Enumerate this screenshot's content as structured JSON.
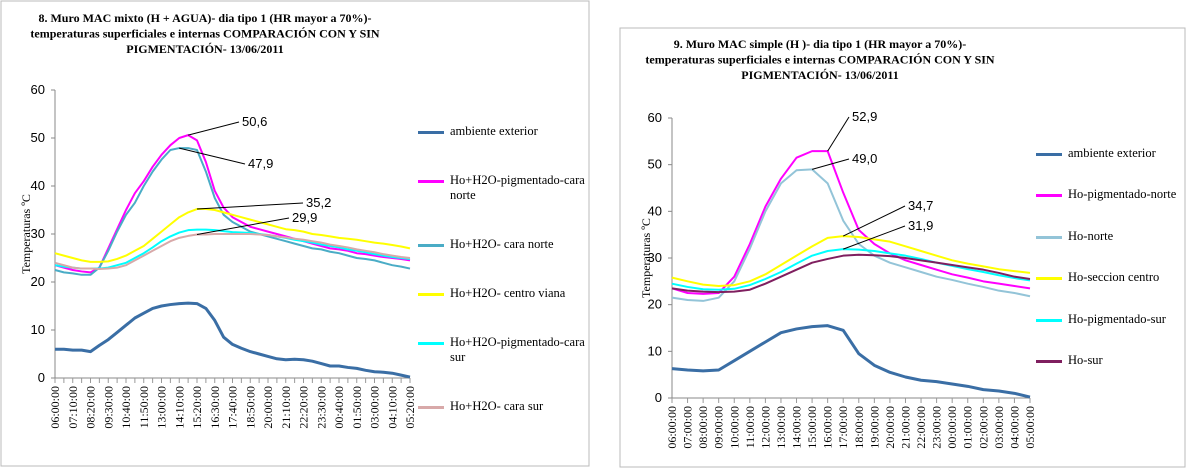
{
  "chart_data": [
    {
      "type": "line",
      "title": [
        "8. Muro MAC mixto  (H + AGUA)-   dia tipo 1 (HR mayor a 70%)-",
        "temperaturas superficiales e internas COMPARACIÓN  CON Y SIN",
        "PIGMENTACIÓN-  13/06/2011"
      ],
      "y_label": "Temperaturas ºC",
      "categories": [
        "06:00:00",
        null,
        "07:10:00",
        null,
        "08:20:00",
        null,
        "09:30:00",
        null,
        "10:40:00",
        null,
        "11:50:00",
        null,
        "13:00:00",
        null,
        "14:10:00",
        null,
        "15:20:00",
        null,
        "16:30:00",
        null,
        "17:40:00",
        null,
        "18:50:00",
        null,
        "20:00:00",
        null,
        "21:10:00",
        null,
        "22:20:00",
        null,
        "23:30:00",
        null,
        "00:40:00",
        null,
        "01:50:00",
        null,
        "03:00:00",
        null,
        "04:10:00",
        null,
        "05:20:00"
      ],
      "ylim": [
        0,
        60
      ],
      "yticks": [
        0,
        10,
        20,
        30,
        40,
        50,
        60
      ],
      "grid": false,
      "legend": "right",
      "series": [
        {
          "name": "ambiente exterior",
          "color": "#3a6ea5",
          "values": [
            6,
            6,
            5.8,
            5.8,
            5.5,
            6.8,
            8,
            9.5,
            11,
            12.5,
            13.5,
            14.5,
            15,
            15.3,
            15.5,
            15.6,
            15.5,
            14.5,
            12,
            8.5,
            7,
            6.2,
            5.5,
            5,
            4.5,
            4,
            3.8,
            3.9,
            3.8,
            3.5,
            3,
            2.5,
            2.5,
            2.2,
            2,
            1.6,
            1.3,
            1.2,
            1,
            0.6,
            0.2
          ]
        },
        {
          "name": "Ho+H2O-pigmentado-cara norte",
          "color": "#ff00ff",
          "values": [
            23.5,
            23,
            22.5,
            22.2,
            22,
            23,
            27,
            31,
            35,
            38.5,
            41,
            44,
            46.5,
            48.5,
            50,
            50.6,
            49.5,
            45,
            39,
            35.5,
            33.5,
            32.5,
            31.5,
            31,
            30.5,
            30,
            29.5,
            29,
            28.5,
            28,
            27.5,
            27,
            26.8,
            26.5,
            26,
            25.8,
            25.5,
            25.2,
            25,
            24.8,
            24.5
          ]
        },
        {
          "name": "Ho+H2O- cara norte",
          "color": "#4aacc6",
          "values": [
            22.5,
            22,
            21.8,
            21.5,
            21.5,
            23,
            26.5,
            30.5,
            34,
            36.5,
            40,
            43,
            45.5,
            47.5,
            47.9,
            47.9,
            47.5,
            43,
            37.5,
            34,
            32.5,
            31.5,
            30.5,
            30,
            29.5,
            29,
            28.5,
            28,
            27.5,
            27,
            26.8,
            26.3,
            26,
            25.5,
            25,
            24.8,
            24.5,
            24,
            23.5,
            23.2,
            22.8
          ]
        },
        {
          "name": "Ho+H2O- centro viana",
          "color": "#ffff00",
          "values": [
            26,
            25.5,
            25,
            24.5,
            24.2,
            24.2,
            24.3,
            24.8,
            25.5,
            26.5,
            27.5,
            29,
            30.5,
            32,
            33.5,
            34.5,
            35.2,
            35.2,
            35,
            34.5,
            34,
            33.5,
            33,
            32.5,
            32,
            31.5,
            31,
            30.8,
            30.5,
            30,
            29.8,
            29.5,
            29.2,
            29,
            28.8,
            28.5,
            28.2,
            28,
            27.7,
            27.4,
            27
          ]
        },
        {
          "name": "Ho+H2O-pigmentado-cara sur",
          "color": "#00ffff",
          "values": [
            23.5,
            23.2,
            23,
            22.8,
            22.8,
            22.8,
            23,
            23.5,
            24,
            25,
            26,
            27.2,
            28.5,
            29.5,
            30.3,
            30.8,
            30.9,
            30.9,
            30.8,
            30.6,
            30.4,
            30.3,
            30.2,
            30,
            29.8,
            29.5,
            29.2,
            28.8,
            28.5,
            28.2,
            27.8,
            27.5,
            27.2,
            26.8,
            26.5,
            26.2,
            25.8,
            25.5,
            25.2,
            25,
            24.8
          ]
        },
        {
          "name": "Ho+H2O- cara sur",
          "color": "#d8a9a9",
          "values": [
            24,
            23.5,
            23,
            22.8,
            22.8,
            22.7,
            22.8,
            23,
            23.5,
            24.5,
            25.5,
            26.5,
            27.5,
            28.5,
            29.2,
            29.6,
            29.9,
            29.9,
            30,
            30,
            30,
            30,
            30,
            29.9,
            29.8,
            29.5,
            29.3,
            29,
            28.8,
            28.5,
            28.2,
            27.8,
            27.5,
            27.2,
            26.8,
            26.5,
            26.2,
            25.8,
            25.5,
            25.2,
            25
          ]
        }
      ],
      "annotations": [
        {
          "text": "50,6"
        },
        {
          "text": "47,9"
        },
        {
          "text": "35,2"
        },
        {
          "text": "29,9"
        }
      ]
    },
    {
      "type": "line",
      "title": [
        "9. Muro MAC simple  (H )-   dia tipo 1 (HR mayor a 70%)-",
        "temperaturas superficiales e internas COMPARACIÓN  CON Y SIN",
        "PIGMENTACIÓN-  13/06/2011"
      ],
      "y_label": "Temperaturas ºC",
      "categories": [
        "06:00:00",
        "07:00:00",
        "08:00:00",
        "09:00:00",
        "10:00:00",
        "11:00:00",
        "12:00:00",
        "13:00:00",
        "14:00:00",
        "15:00:00",
        "16:00:00",
        "17:00:00",
        "18:00:00",
        "19:00:00",
        "20:00:00",
        "21:00:00",
        "22:00:00",
        "23:00:00",
        "00:00:00",
        "01:00:00",
        "02:00:00",
        "03:00:00",
        "04:00:00",
        "05:00:00"
      ],
      "ylim": [
        0,
        60
      ],
      "yticks": [
        0,
        10,
        20,
        30,
        40,
        50,
        60
      ],
      "grid": false,
      "legend": "right",
      "series": [
        {
          "name": "ambiente exterior",
          "color": "#3a6ea5",
          "values": [
            6.3,
            6,
            5.8,
            6,
            8,
            10,
            12,
            14,
            14.8,
            15.3,
            15.5,
            14.5,
            9.5,
            7,
            5.5,
            4.5,
            3.8,
            3.5,
            3,
            2.5,
            1.8,
            1.5,
            1,
            0.2
          ]
        },
        {
          "name": "Ho-pigmentado-norte",
          "color": "#ff00ff",
          "values": [
            23.5,
            22.5,
            22.3,
            22.5,
            26,
            33,
            41,
            47,
            51.5,
            52.9,
            52.9,
            44,
            36,
            33,
            31,
            29.5,
            28.5,
            27.5,
            26.5,
            25.8,
            25,
            24.5,
            24,
            23.5
          ]
        },
        {
          "name": "Ho-norte",
          "color": "#93c4d8",
          "values": [
            21.5,
            21,
            20.8,
            21.5,
            25,
            32,
            40,
            46,
            48.8,
            49,
            46,
            38,
            33,
            30.5,
            29,
            28,
            27,
            26,
            25.3,
            24.5,
            23.8,
            23,
            22.5,
            21.8
          ]
        },
        {
          "name": "Ho-seccion centro",
          "color": "#ffff00",
          "values": [
            25.8,
            25,
            24.3,
            24,
            24.2,
            25,
            26.5,
            28.5,
            30.5,
            32.5,
            34.3,
            34.7,
            34.5,
            34,
            33.5,
            32.5,
            31.5,
            30.5,
            29.5,
            28.8,
            28.2,
            27.6,
            27.2,
            26.8
          ]
        },
        {
          "name": "Ho-pigmentado-sur",
          "color": "#00ffff",
          "values": [
            24.5,
            23.8,
            23.3,
            23.2,
            23.4,
            24.2,
            25.5,
            27,
            28.8,
            30.5,
            31.5,
            31.9,
            31.8,
            31.5,
            31,
            30.5,
            29.8,
            29,
            28.3,
            27.6,
            27,
            26.3,
            25.7,
            25.2
          ]
        },
        {
          "name": "Ho-sur",
          "color": "#7f1f5f",
          "values": [
            23.5,
            23,
            22.8,
            22.7,
            22.8,
            23.2,
            24.5,
            26,
            27.5,
            29,
            29.8,
            30.5,
            30.7,
            30.6,
            30.4,
            30,
            29.5,
            29,
            28.5,
            28,
            27.5,
            26.8,
            26,
            25.5
          ]
        }
      ],
      "annotations": [
        {
          "text": "52,9"
        },
        {
          "text": "49,0"
        },
        {
          "text": "34,7"
        },
        {
          "text": "31,9"
        }
      ]
    }
  ]
}
